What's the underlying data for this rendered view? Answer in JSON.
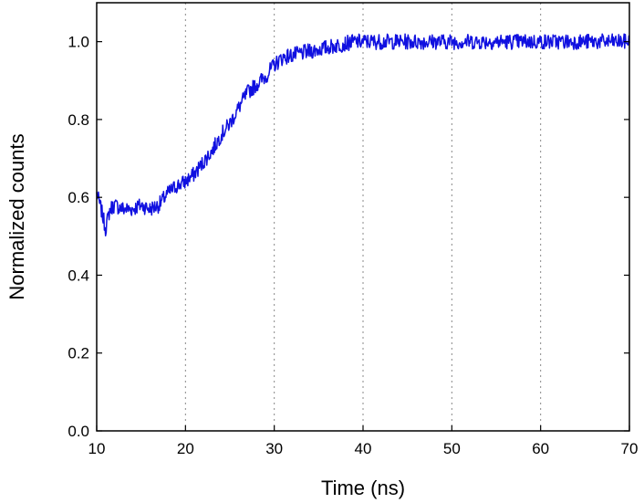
{
  "chart_data": {
    "type": "line",
    "title": "",
    "xlabel": "Time (ns)",
    "ylabel": "Normalized counts",
    "xlim": [
      10,
      70
    ],
    "ylim": [
      0.0,
      1.1
    ],
    "x_ticks": [
      10,
      20,
      30,
      40,
      50,
      60,
      70
    ],
    "x_tick_labels": [
      "10",
      "20",
      "30",
      "40",
      "50",
      "60",
      "70"
    ],
    "y_ticks": [
      0.0,
      0.2,
      0.4,
      0.6,
      0.8,
      1.0
    ],
    "y_tick_labels": [
      "0.0",
      "0.2",
      "0.4",
      "0.6",
      "0.8",
      "1.0"
    ],
    "grid": "vertical dotted at x ticks",
    "legend": "none",
    "series": [
      {
        "color": "#1010e0",
        "x": [
          10.0,
          10.5,
          11.0,
          11.5,
          12.0,
          13.0,
          14.0,
          15.0,
          16.0,
          17.0,
          18.0,
          19.0,
          20.0,
          21.0,
          22.0,
          23.0,
          24.0,
          25.0,
          26.0,
          27.0,
          28.0,
          29.0,
          30.0,
          31.0,
          32.0,
          33.0,
          34.0,
          35.0,
          36.0,
          37.0,
          38.0,
          39.0,
          40.0,
          42.0,
          44.0,
          46.0,
          48.0,
          50.0,
          52.0,
          54.0,
          56.0,
          58.0,
          60.0,
          62.0,
          64.0,
          66.0,
          68.0,
          70.0
        ],
        "y": [
          0.61,
          0.57,
          0.52,
          0.57,
          0.58,
          0.57,
          0.57,
          0.58,
          0.57,
          0.58,
          0.61,
          0.63,
          0.64,
          0.66,
          0.69,
          0.72,
          0.76,
          0.79,
          0.83,
          0.87,
          0.89,
          0.91,
          0.94,
          0.96,
          0.965,
          0.97,
          0.975,
          0.98,
          0.985,
          0.99,
          0.995,
          1.0,
          1.0,
          1.0,
          1.0,
          1.0,
          1.0,
          1.0,
          1.0,
          1.0,
          1.0,
          1.0,
          1.0,
          1.0,
          1.0,
          1.0,
          1.0,
          1.0
        ]
      }
    ]
  }
}
